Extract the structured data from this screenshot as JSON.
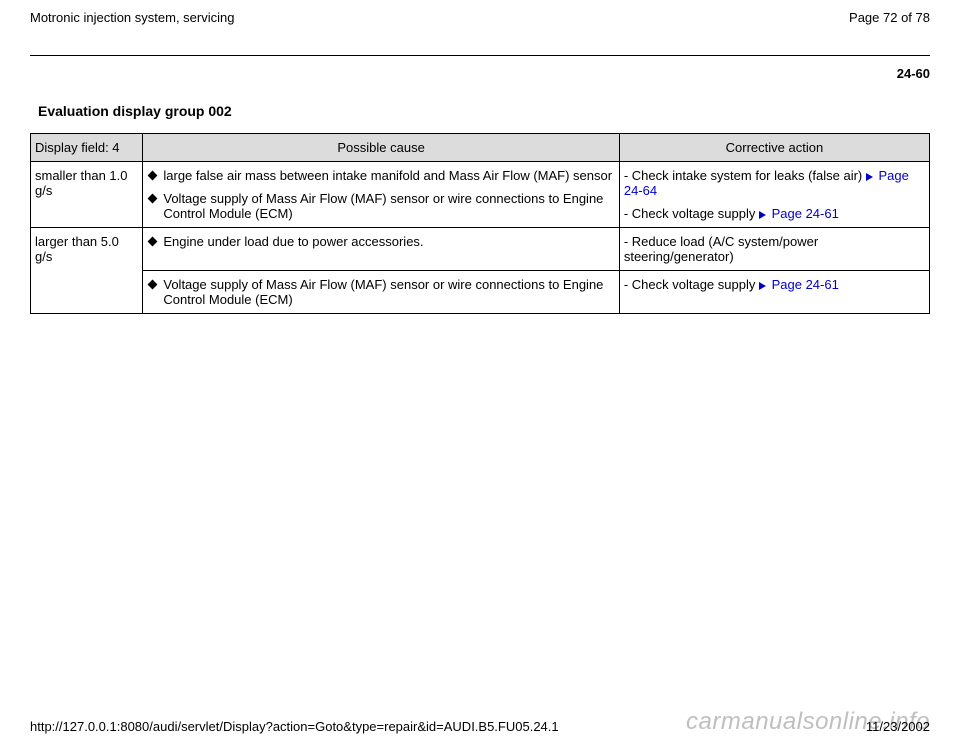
{
  "header": {
    "title": "Motronic injection system, servicing",
    "page_label": "Page 72 of 78"
  },
  "section": {
    "number": "24-60",
    "title": "Evaluation display group 002"
  },
  "table": {
    "columns": {
      "display": "Display field: 4",
      "cause": "Possible cause",
      "action": "Corrective action"
    },
    "row1": {
      "display": "smaller than 1.0 g/s",
      "cause1": "large false air mass between intake manifold and Mass Air Flow (MAF) sensor",
      "cause2": "Voltage supply of Mass Air Flow (MAF) sensor or wire connections to Engine Control Module (ECM)",
      "action1_text": "- Check intake system for leaks (false air) ",
      "action1_link": "Page 24-64",
      "action2_text": "- Check voltage supply ",
      "action2_link": "Page 24-61"
    },
    "row2a": {
      "display": "larger than 5.0 g/s",
      "cause": "Engine under load due to power accessories.",
      "action": "- Reduce load (A/C system/power steering/generator)"
    },
    "row2b": {
      "cause": "Voltage supply of Mass Air Flow (MAF) sensor or wire connections to Engine Control Module (ECM)",
      "action_text": "- Check voltage supply ",
      "action_link": "Page 24-61"
    }
  },
  "footer": {
    "url": "http://127.0.0.1:8080/audi/servlet/Display?action=Goto&type=repair&id=AUDI.B5.FU05.24.1",
    "date": "11/23/2002"
  },
  "watermark": "carmanualsonline.info"
}
